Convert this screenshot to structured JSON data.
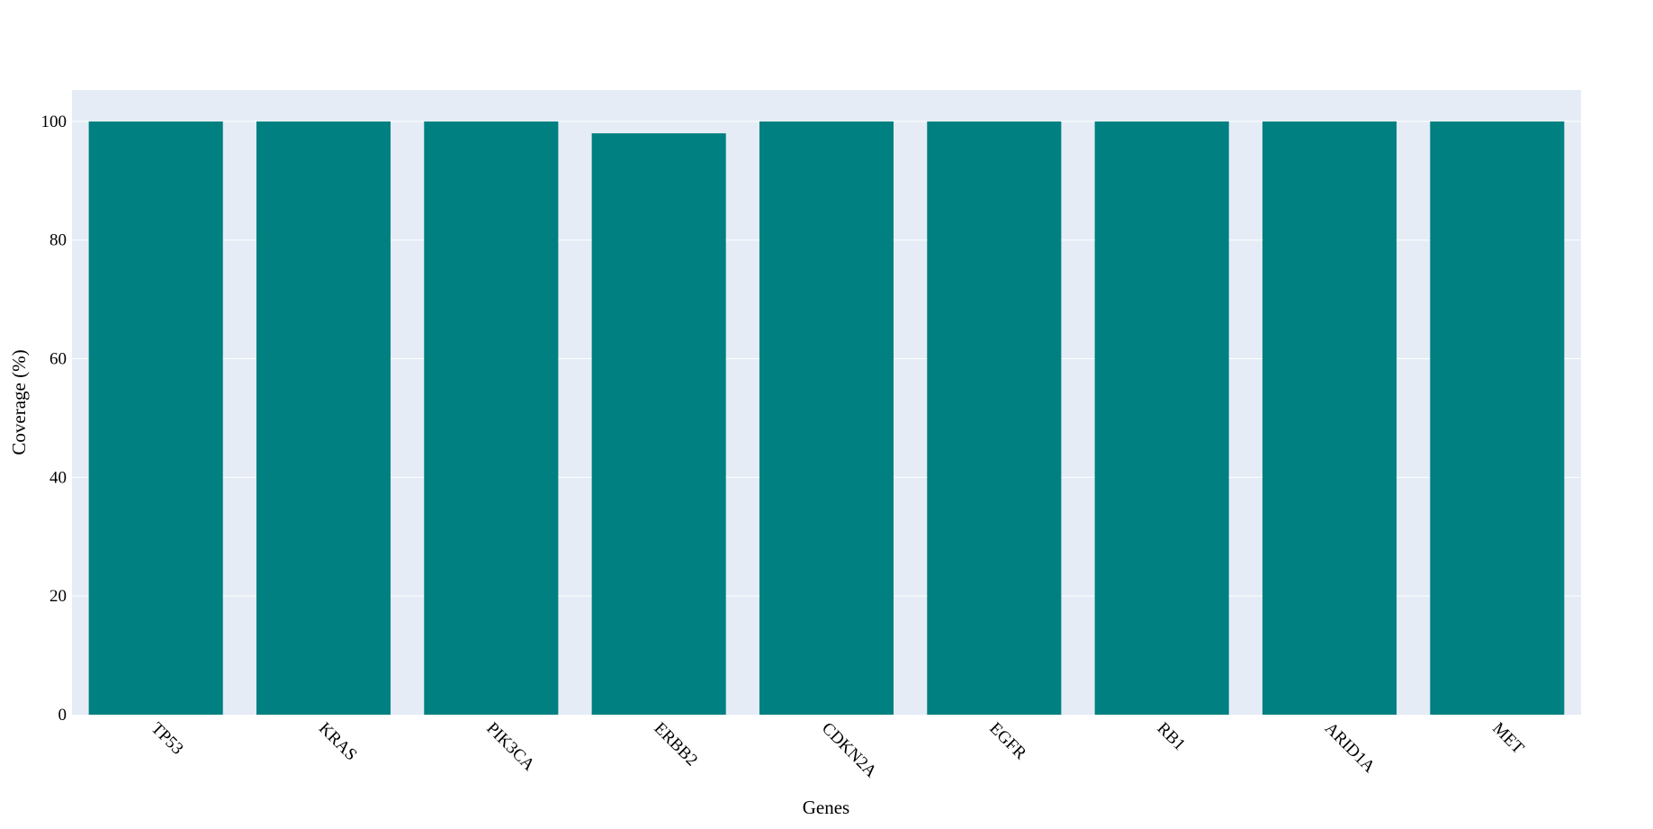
{
  "chart_data": {
    "type": "bar",
    "title": "",
    "xlabel": "Genes",
    "ylabel": "Coverage (%)",
    "categories": [
      "TP53",
      "KRAS",
      "PIK3CA",
      "ERBB2",
      "CDKN2A",
      "EGFR",
      "RB1",
      "ARID1A",
      "MET"
    ],
    "values": [
      100,
      100,
      100,
      98,
      100,
      100,
      100,
      100,
      100
    ],
    "ylim": [
      0,
      105.3
    ],
    "yticks": [
      0,
      20,
      40,
      60,
      80,
      100
    ],
    "grid": true,
    "legend": "none",
    "colors": {
      "bar": "#008080",
      "plot_bg": "#e5ecf6",
      "grid": "#ffffff"
    }
  }
}
